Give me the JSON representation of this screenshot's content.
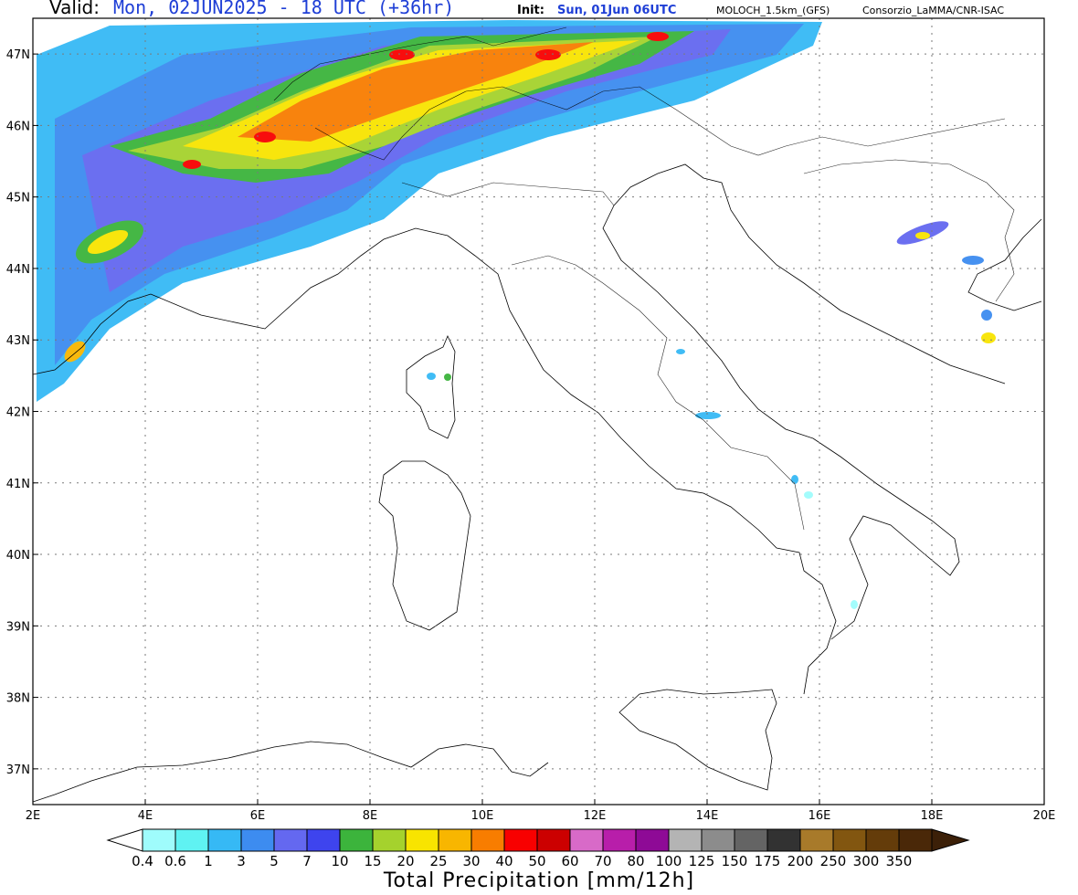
{
  "header": {
    "valid_label": "Valid:",
    "valid_value": "Mon, 02JUN2025 - 18 UTC (+36hr)",
    "init_label": "Init:",
    "init_value": "Sun, 01Jun 06UTC",
    "model": "MOLOCH_1.5km_(GFS)",
    "credit": "Consorzio_LaMMA/CNR-ISAC"
  },
  "map": {
    "lon_range": [
      2,
      20
    ],
    "lat_range": [
      36.5,
      47.5
    ],
    "lon_ticks": [
      "2E",
      "4E",
      "6E",
      "8E",
      "10E",
      "12E",
      "14E",
      "16E",
      "18E",
      "20E"
    ],
    "lat_ticks": [
      "37N",
      "38N",
      "39N",
      "40N",
      "41N",
      "42N",
      "43N",
      "44N",
      "45N",
      "46N",
      "47N"
    ],
    "gridlines": "dotted"
  },
  "legend": {
    "title": "Total Precipitation [mm/12h]",
    "levels": [
      "0.4",
      "0.6",
      "1",
      "3",
      "5",
      "7",
      "10",
      "15",
      "20",
      "25",
      "30",
      "40",
      "50",
      "60",
      "70",
      "80",
      "100",
      "125",
      "150",
      "175",
      "200",
      "250",
      "300",
      "350"
    ],
    "colors": [
      "#9ffcfc",
      "#5ff2f2",
      "#36b9f5",
      "#3d8cf0",
      "#6468f0",
      "#3e44ee",
      "#3cb43c",
      "#a5d22d",
      "#f8e400",
      "#f8b600",
      "#f87d00",
      "#f80000",
      "#cc0000",
      "#d86ac8",
      "#b81eaa",
      "#8e0a96",
      "#b4b4b4",
      "#8c8c8c",
      "#646464",
      "#323232",
      "#a87a2a",
      "#825610",
      "#643c0a",
      "#4a2808"
    ],
    "low_arrow_color": "#ffffff",
    "high_arrow_color": "#3c2008"
  }
}
